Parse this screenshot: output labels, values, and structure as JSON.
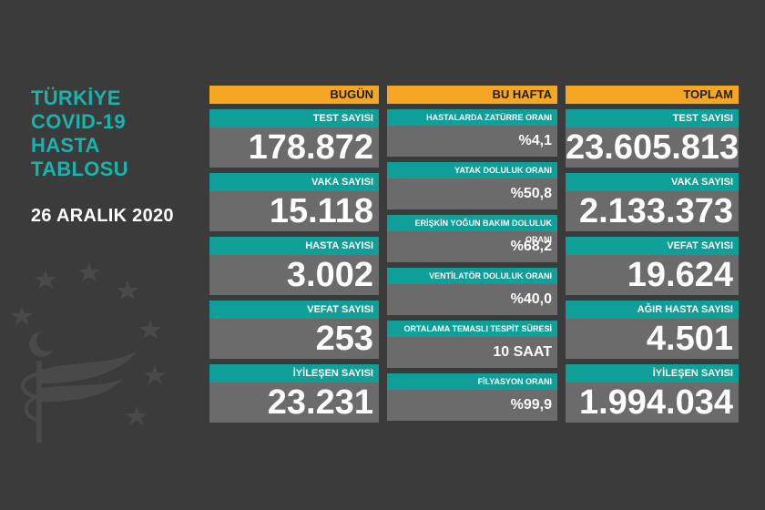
{
  "title_lines": [
    "TÜRKİYE",
    "COVID-19",
    "HASTA",
    "TABLOSU"
  ],
  "date": "26 ARALIK 2020",
  "columns": {
    "today": {
      "header": "BUGÜN",
      "items": [
        {
          "label": "TEST SAYISI",
          "value": "178.872"
        },
        {
          "label": "VAKA SAYISI",
          "value": "15.118"
        },
        {
          "label": "HASTA SAYISI",
          "value": "3.002"
        },
        {
          "label": "VEFAT SAYISI",
          "value": "253"
        },
        {
          "label": "İYİLEŞEN SAYISI",
          "value": "23.231"
        }
      ]
    },
    "week": {
      "header": "BU HAFTA",
      "items": [
        {
          "label": "HASTALARDA ZATÜRRE ORANI",
          "value": "%4,1"
        },
        {
          "label": "YATAK DOLULUK ORANI",
          "value": "%50,8"
        },
        {
          "label": "ERİŞKİN YOĞUN BAKIM DOLULUK ORANI",
          "value": "%68,2"
        },
        {
          "label": "VENTİLATÖR DOLULUK ORANI",
          "value": "%40,0"
        },
        {
          "label": "ORTALAMA TEMASLI TESPİT SÜRESİ",
          "value": "10 SAAT"
        },
        {
          "label": "FİLYASYON ORANI",
          "value": "%99,9"
        }
      ]
    },
    "total": {
      "header": "TOPLAM",
      "items": [
        {
          "label": "TEST SAYISI",
          "value": "23.605.813"
        },
        {
          "label": "VAKA SAYISI",
          "value": "2.133.373"
        },
        {
          "label": "VEFAT SAYISI",
          "value": "19.624"
        },
        {
          "label": "AĞIR HASTA SAYISI",
          "value": "4.501"
        },
        {
          "label": "İYİLEŞEN SAYISI",
          "value": "1.994.034"
        }
      ]
    }
  },
  "colors": {
    "background": "#3b3b3b",
    "accent_teal": "#0f9f99",
    "header_orange": "#f5a623",
    "value_gray": "#6b6b6b"
  },
  "emblem": "ministry-of-health-emblem"
}
